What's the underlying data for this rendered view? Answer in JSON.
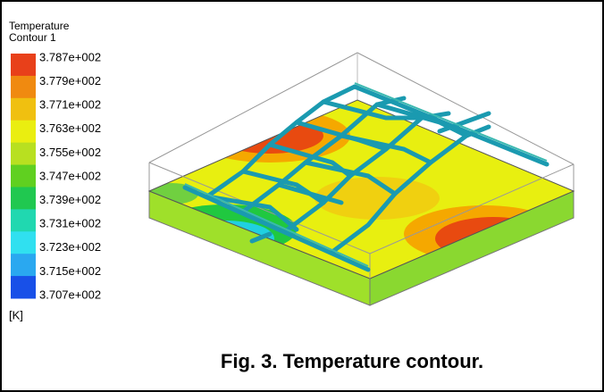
{
  "legend": {
    "title": "Temperature",
    "subtitle": "Contour 1",
    "labels": [
      "3.787e+002",
      "3.779e+002",
      "3.771e+002",
      "3.763e+002",
      "3.755e+002",
      "3.747e+002",
      "3.739e+002",
      "3.731e+002",
      "3.723e+002",
      "3.715e+002",
      "3.707e+002"
    ],
    "unit": "[K]"
  },
  "caption": "Fig. 3. Temperature contour."
}
